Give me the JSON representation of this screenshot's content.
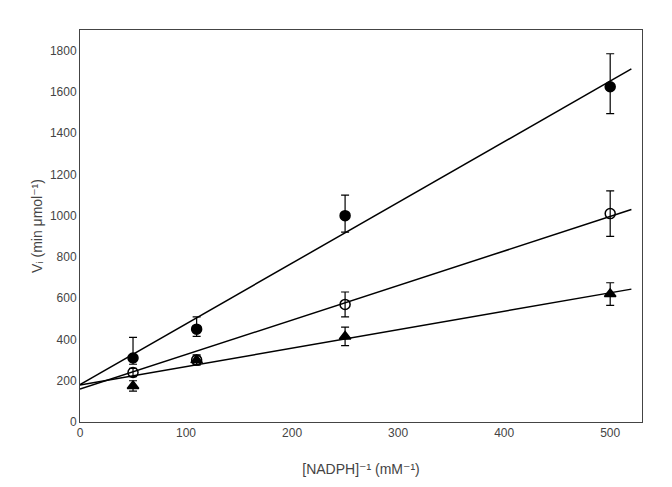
{
  "chart_data": {
    "type": "scatter",
    "xlabel": "[NADPH]⁻¹ (mM⁻¹)",
    "ylabel": "Vᵢ (min μmol⁻¹)",
    "xlim": [
      0,
      530
    ],
    "ylim": [
      0,
      1900
    ],
    "xticks": [
      0,
      100,
      200,
      300,
      400,
      500
    ],
    "yticks": [
      0,
      200,
      400,
      600,
      800,
      1000,
      1200,
      1400,
      1600,
      1800
    ],
    "grid": false,
    "series": [
      {
        "type": "line",
        "color": "black",
        "line_style": "solid",
        "x": [
          0,
          520
        ],
        "values": [
          181.60578,
          1711.30356
        ]
      },
      {
        "type": "scatter",
        "color": "black",
        "marker": "circle",
        "x": [
          50,
          110,
          250,
          500
        ],
        "values": [
          310,
          450,
          1000,
          1625
        ],
        "error_upper": [
          100,
          60,
          100,
          160
        ],
        "error_lower": [
          30,
          35,
          80,
          130
        ]
      },
      {
        "type": "line",
        "color": "black",
        "line_style": "solid",
        "x": [
          0,
          520
        ],
        "values": [
          159.39683,
          1029.69161
        ]
      },
      {
        "type": "scatter",
        "color": "black",
        "marker": "open_circle",
        "x": [
          50,
          110,
          250,
          500
        ],
        "values": [
          240,
          300,
          570,
          1010
        ],
        "error_upper": [
          20,
          25,
          60,
          110
        ],
        "error_lower": [
          20,
          25,
          60,
          110
        ]
      },
      {
        "type": "line",
        "color": "black",
        "line_style": "solid",
        "x": [
          0,
          520
        ],
        "values": [
          179.38567,
          643.99803
        ]
      },
      {
        "type": "scatter",
        "color": "black",
        "marker": "triangle",
        "x": [
          50,
          110,
          250,
          500
        ],
        "values": [
          175,
          300,
          415,
          620
        ],
        "error_upper": [
          25,
          20,
          45,
          55
        ],
        "error_lower": [
          25,
          20,
          45,
          55
        ]
      }
    ]
  }
}
